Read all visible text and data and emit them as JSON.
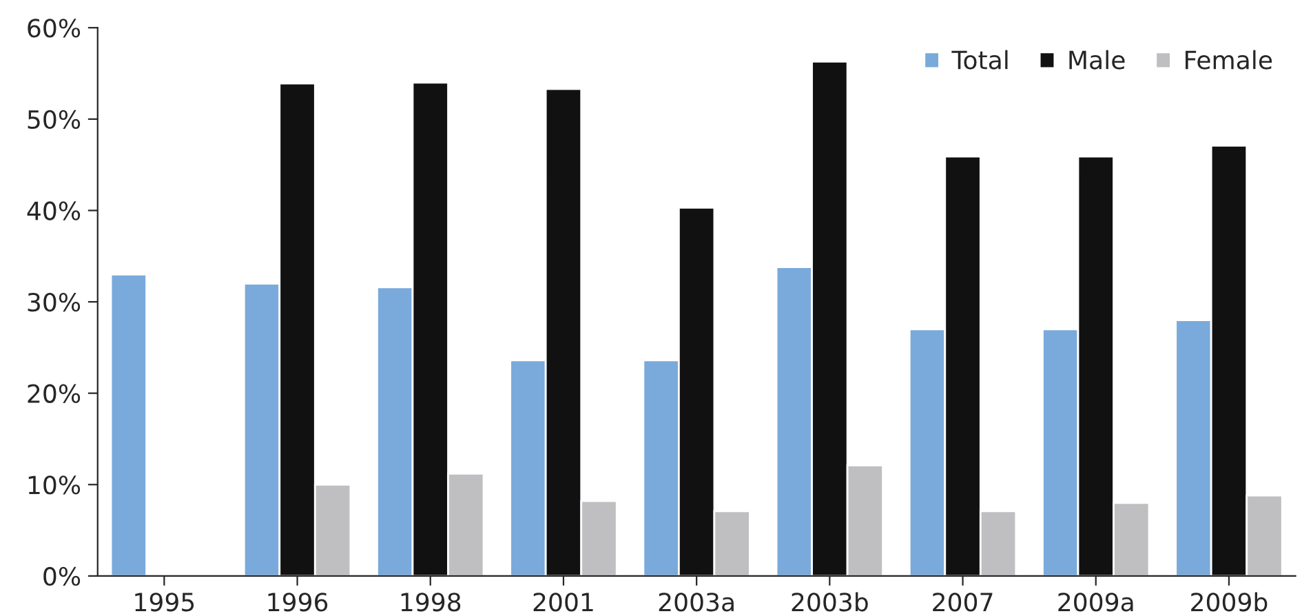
{
  "chart_data": {
    "type": "bar",
    "categories": [
      "1995",
      "1996",
      "1998",
      "2001",
      "2003a",
      "2003b",
      "2007",
      "2009a",
      "2009b"
    ],
    "series": [
      {
        "name": "Total",
        "color": "#7aaadb",
        "values": [
          33,
          32,
          31.6,
          23.6,
          23.6,
          33.8,
          27,
          27,
          28
        ]
      },
      {
        "name": "Male",
        "color": "#111111",
        "values": [
          null,
          53.9,
          54,
          53.3,
          40.3,
          56.3,
          45.9,
          45.9,
          47.1
        ]
      },
      {
        "name": "Female",
        "color": "#bfbfc1",
        "values": [
          null,
          10,
          11.2,
          8.2,
          7.1,
          12.1,
          7.1,
          8,
          8.8
        ]
      }
    ],
    "ylim": [
      0,
      60
    ],
    "yticks": [
      {
        "value": 0,
        "label": "0%"
      },
      {
        "value": 10,
        "label": "10%"
      },
      {
        "value": 20,
        "label": "20%"
      },
      {
        "value": 30,
        "label": "30%"
      },
      {
        "value": 40,
        "label": "40%"
      },
      {
        "value": 50,
        "label": "50%"
      },
      {
        "value": 60,
        "label": "60%"
      }
    ],
    "grid": false,
    "legend": "top right"
  }
}
